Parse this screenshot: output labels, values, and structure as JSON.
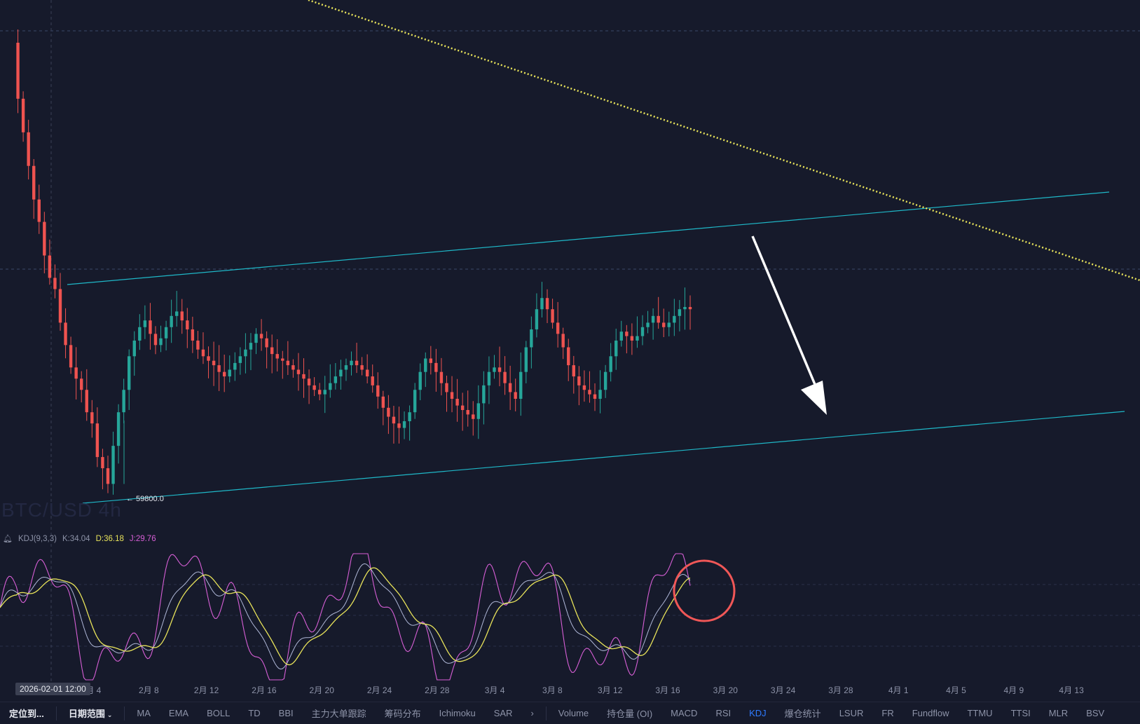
{
  "chart_data": {
    "type": "candlestick",
    "title": "",
    "subtitle": "",
    "watermark": "BTC/USD 4h",
    "price_label": "← 59800.0",
    "x_ticks": [
      "2月 4",
      "2月 8",
      "2月 12",
      "2月 16",
      "2月 20",
      "2月 24",
      "2月 28",
      "3月 4",
      "3月 8",
      "3月 12",
      "3月 16",
      "3月 20",
      "3月 24",
      "3月 28",
      "4月 1",
      "4月 5",
      "4月 9",
      "4月 13"
    ],
    "crosshair_date": "2026-02-01 12:00",
    "annotations": [
      "ascending channel (cyan lines)",
      "descending dotted yellow trendline",
      "white down arrow",
      "red circle on KDJ"
    ],
    "price_path": [
      79500,
      77000,
      75500,
      74000,
      72500,
      71500,
      70000,
      69000,
      68500,
      67000,
      66000,
      65000,
      64500,
      64000,
      63000,
      62500,
      61000,
      60500,
      59800,
      61500,
      63000,
      64000,
      65500,
      66200,
      66800,
      67100,
      66500,
      66000,
      66300,
      66800,
      67300,
      67500,
      67100,
      66700,
      66200,
      65800,
      65500,
      65300,
      65100,
      64800,
      64600,
      64900,
      65200,
      65500,
      65800,
      66100,
      66500,
      66300,
      65900,
      65600,
      65400,
      65300,
      65100,
      64900,
      64700,
      64500,
      64200,
      64000,
      63800,
      64000,
      64300,
      64600,
      64900,
      65100,
      65300,
      65100,
      64900,
      64600,
      64200,
      63700,
      63200,
      62800,
      62500,
      62300,
      62600,
      63000,
      64000,
      64800,
      65400,
      65200,
      64800,
      64300,
      63900,
      63600,
      63300,
      63100,
      62900,
      62700,
      63400,
      64200,
      64800,
      65000,
      64800,
      64300,
      63900,
      63600,
      64800,
      65900,
      66700,
      67600,
      68100,
      67600,
      67000,
      66500,
      65900,
      65100,
      64600,
      64200,
      64000,
      63800,
      63600,
      64000,
      64800,
      65500,
      66200,
      66600,
      66400,
      66200,
      66400,
      66800,
      67000,
      67300,
      67000,
      66800,
      67000,
      67300,
      67600,
      67700,
      67600
    ],
    "kdj": {
      "period": "KDJ(9,3,3)",
      "K": "K:34.04",
      "D": "D:36.18",
      "J": "J:29.76"
    },
    "colors": {
      "up": "#26a69a",
      "down": "#ef5350",
      "channel": "#1fb8c8",
      "trend": "#e8e35a",
      "k": "#b0b8d8",
      "d": "#e8e35a",
      "j": "#d75fd6",
      "circle": "#f05757",
      "arrow": "#ffffff"
    }
  },
  "toolbar": {
    "left": [
      "定位到...",
      "日期范围"
    ],
    "indicators": [
      "MA",
      "EMA",
      "BOLL",
      "TD",
      "BBI",
      "主力大单跟踪",
      "筹码分布",
      "Ichimoku",
      "SAR"
    ],
    "more": "›",
    "sub_indicators": [
      "Volume",
      "持仓量 (OI)",
      "MACD",
      "RSI",
      "KDJ",
      "爆仓统计",
      "LSUR",
      "FR",
      "Fundflow",
      "TTMU",
      "TTSI",
      "MLR",
      "BSV"
    ],
    "active": "KDJ"
  }
}
